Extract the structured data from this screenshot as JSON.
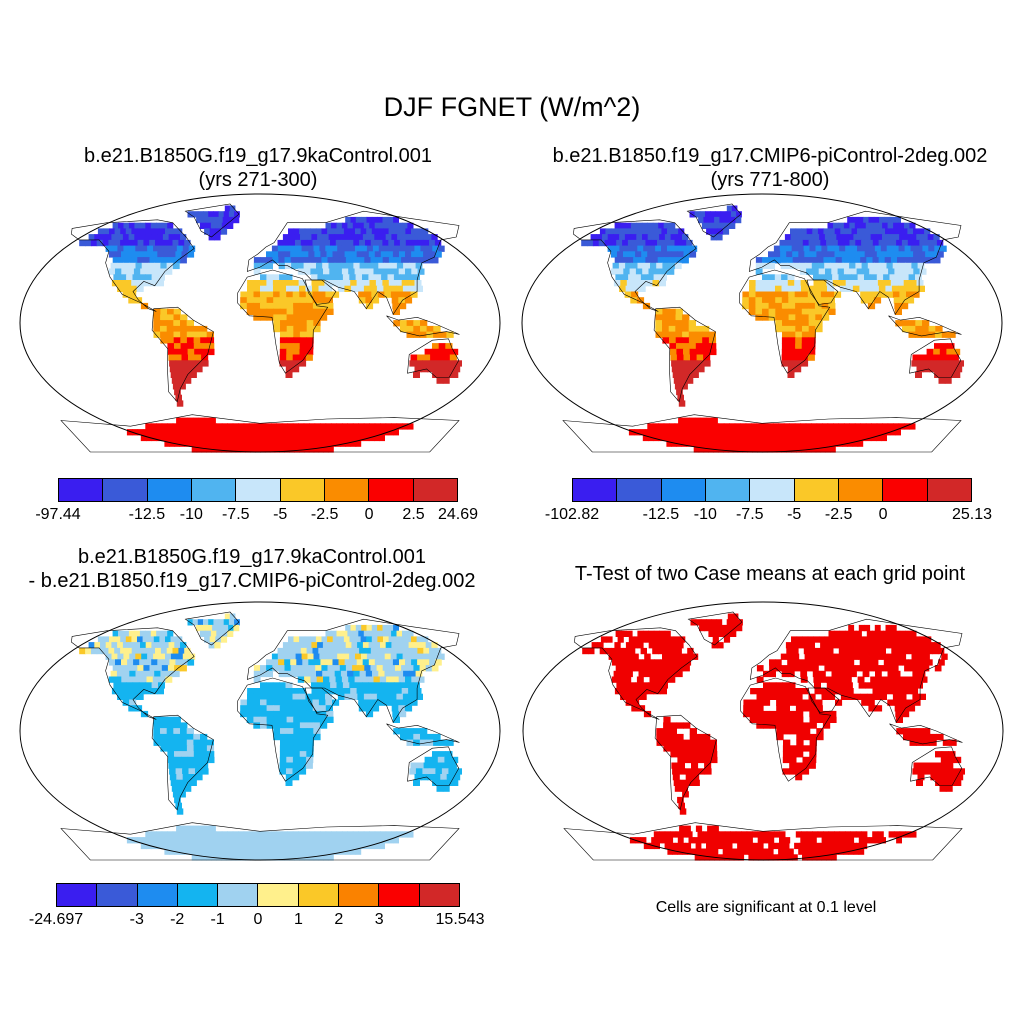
{
  "title": "DJF FGNET (W/m^2)",
  "panels": [
    {
      "title_line1": "b.e21.B1850G.f19_g17.9kaControl.001",
      "title_line2": "(yrs 271-300)",
      "colorbar": {
        "colors": [
          "#3a1ef0",
          "#3a5ad8",
          "#1e8cf0",
          "#50b4f0",
          "#c8e6fa",
          "#fac828",
          "#fa8c00",
          "#fa0000",
          "#d22828"
        ],
        "labels": [
          "-97.44",
          "-12.5",
          "-10",
          "-7.5",
          "-5",
          "-2.5",
          "0",
          "2.5",
          "24.69"
        ]
      }
    },
    {
      "title_line1": "b.e21.B1850.f19_g17.CMIP6-piControl-2deg.002",
      "title_line2": "(yrs 771-800)",
      "colorbar": {
        "colors": [
          "#3a1ef0",
          "#3a5ad8",
          "#1e8cf0",
          "#50b4f0",
          "#c8e6fa",
          "#fac828",
          "#fa8c00",
          "#fa0000",
          "#d22828"
        ],
        "labels": [
          "-102.82",
          "-12.5",
          "-10",
          "-7.5",
          "-5",
          "-2.5",
          "0",
          "25.13"
        ]
      }
    },
    {
      "title_line1": "b.e21.B1850G.f19_g17.9kaControl.001",
      "title_line2": "- b.e21.B1850.f19_g17.CMIP6-piControl-2deg.002",
      "colorbar": {
        "colors": [
          "#3a1ef0",
          "#3a5ad8",
          "#1e8cf0",
          "#14b4f0",
          "#a0d2f0",
          "#fff08c",
          "#fac828",
          "#fa8200",
          "#fa0000",
          "#d22828"
        ],
        "labels": [
          "-24.697",
          "-3",
          "-2",
          "-1",
          "0",
          "1",
          "2",
          "3",
          "15.543"
        ]
      }
    },
    {
      "title_line1": "T-Test of two Case means at each grid point",
      "footnote": "Cells are significant at 0.1 level"
    }
  ]
}
